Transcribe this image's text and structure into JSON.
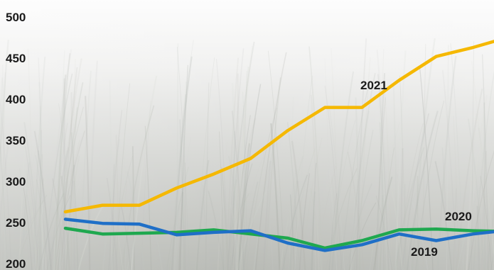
{
  "chart_data": {
    "type": "line",
    "title": "",
    "xlabel": "",
    "ylabel": "",
    "ylim": [
      200,
      500
    ],
    "yticks": [
      "500",
      "450",
      "400",
      "350",
      "300",
      "250",
      "200"
    ],
    "xticks": [],
    "grid": false,
    "legend": "none",
    "background": "misty grass field photo",
    "x": [
      1,
      2,
      3,
      4,
      5,
      6,
      7,
      8,
      9,
      10,
      11,
      12,
      13
    ],
    "series": [
      {
        "name": "2021",
        "color": "#F5B800",
        "values": [
          263,
          271,
          271,
          292,
          309,
          328,
          362,
          390,
          390,
          423,
          452,
          463,
          476
        ]
      },
      {
        "name": "2020",
        "color": "#1FA84F",
        "values": [
          243,
          236,
          237,
          238,
          241,
          236,
          231,
          219,
          228,
          241,
          242,
          240,
          239
        ]
      },
      {
        "name": "2019",
        "color": "#1F6FC7",
        "values": [
          254,
          249,
          248,
          235,
          238,
          240,
          225,
          216,
          223,
          236,
          228,
          236,
          241
        ]
      }
    ]
  }
}
